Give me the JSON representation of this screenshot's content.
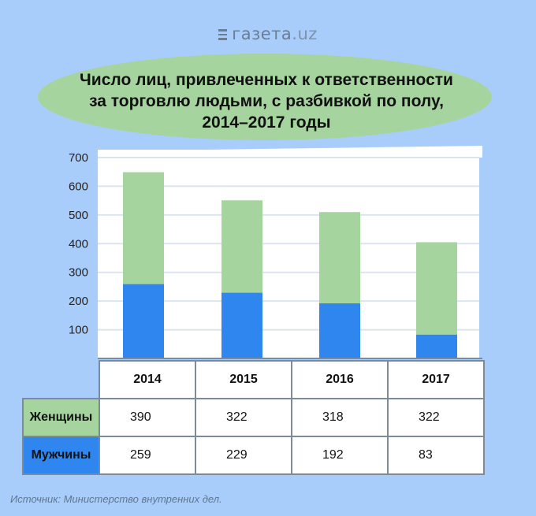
{
  "brand": {
    "name": "газета",
    "domain": ".uz"
  },
  "title_lines": [
    "Число лиц, привлеченных к ответственности",
    "за торговлю людьми,  с разбивкой по полу,",
    "2014–2017 годы"
  ],
  "source": "Источник: Министерство внутренних дел.",
  "colors": {
    "women": "#a6d49e",
    "men": "#2f86ef",
    "background": "#a9cdfb"
  },
  "chart_data": {
    "type": "bar",
    "stacked": true,
    "categories": [
      "2014",
      "2015",
      "2016",
      "2017"
    ],
    "series": [
      {
        "name": "Мужчины",
        "values": [
          259,
          229,
          192,
          83
        ]
      },
      {
        "name": "Женщины",
        "values": [
          390,
          322,
          318,
          322
        ]
      }
    ],
    "y_ticks": [
      "100",
      "200",
      "300",
      "400",
      "500",
      "600",
      "700"
    ],
    "ylim": [
      0,
      700
    ],
    "grid": true,
    "legend": "table-below"
  },
  "table": {
    "headers": [
      "2014",
      "2015",
      "2016",
      "2017"
    ],
    "rows": [
      {
        "label": "Женщины",
        "values": [
          "390",
          "322",
          "318",
          "322"
        ]
      },
      {
        "label": "Мужчины",
        "values": [
          "259",
          "229",
          "192",
          "83"
        ]
      }
    ]
  }
}
